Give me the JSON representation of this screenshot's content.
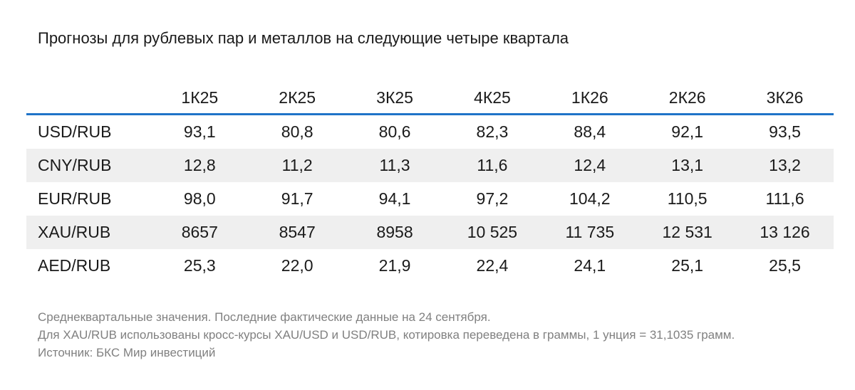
{
  "title": "Прогнозы для рублевых пар и металлов на следующие четыре квартала",
  "table": {
    "columns": [
      "1К25",
      "2К25",
      "3К25",
      "4К25",
      "1К26",
      "2К26",
      "3К26"
    ],
    "rows": [
      {
        "label": "USD/RUB",
        "values": [
          "93,1",
          "80,8",
          "80,6",
          "82,3",
          "88,4",
          "92,1",
          "93,5"
        ]
      },
      {
        "label": "CNY/RUB",
        "values": [
          "12,8",
          "11,2",
          "11,3",
          "11,6",
          "12,4",
          "13,1",
          "13,2"
        ]
      },
      {
        "label": "EUR/RUB",
        "values": [
          "98,0",
          "91,7",
          "94,1",
          "97,2",
          "104,2",
          "110,5",
          "111,6"
        ]
      },
      {
        "label": "XAU/RUB",
        "values": [
          "8657",
          "8547",
          "8958",
          "10 525",
          "11 735",
          "12 531",
          "13 126"
        ]
      },
      {
        "label": "AED/RUB",
        "values": [
          "25,3",
          "22,0",
          "21,9",
          "22,4",
          "24,1",
          "25,1",
          "25,5"
        ]
      }
    ]
  },
  "notes": [
    "Среднеквартальные значения. Последние фактические данные на 24 сентября.",
    "Для XAU/RUB использованы кросс-курсы XAU/USD и USD/RUB, котировка переведена в граммы, 1 унция = 31,1035 грамм.",
    "Источник: БКС Мир инвестиций"
  ],
  "colors": {
    "header_rule": "#1f73c8",
    "shaded_row": "#efefef",
    "note_text": "#808080"
  }
}
